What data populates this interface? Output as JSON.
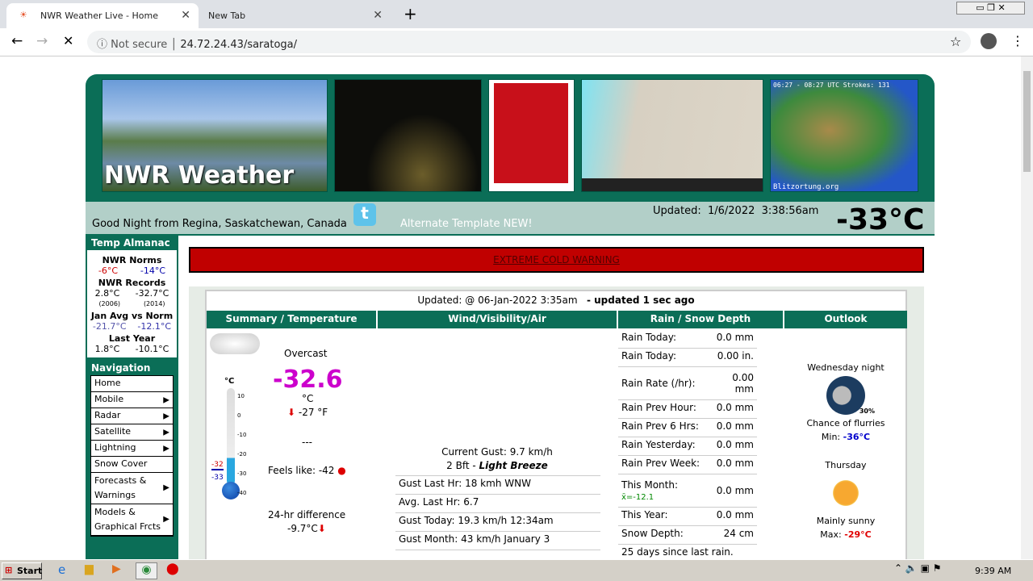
{
  "browser": {
    "tabs": [
      {
        "title": "NWR Weather Live - Home"
      },
      {
        "title": "New Tab"
      }
    ],
    "security": "Not secure",
    "url": "24.72.24.43/saratoga/"
  },
  "header": {
    "logo_text": "NWR Weather",
    "greeting": "Good Night from Regina, Saskatchewan, Canada",
    "alt_template": "Alternate Template NEW!",
    "updated_label": "Updated:",
    "updated_value": "1/6/2022  3:38:56am",
    "big_temp": "-33°C",
    "lightning_caption": "06:27 - 08:27 UTC   Strokes: 131",
    "lightning_credit": "Blitzortung.org"
  },
  "almanac": {
    "title": "Temp Almanac",
    "sections": [
      {
        "label": "NWR Norms",
        "a": "-6°C",
        "b": "-14°C"
      },
      {
        "label": "NWR Records",
        "a": "2.8°C",
        "b": "-32.7°C",
        "a_year": "(2006)",
        "b_year": "(2014)"
      },
      {
        "label": "Jan Avg vs Norm",
        "a": "-21.7°C",
        "b": "-12.1°C"
      },
      {
        "label": "Last Year",
        "a": "1.8°C",
        "b": "-10.1°C"
      }
    ]
  },
  "nav": {
    "title": "Navigation",
    "items": [
      "Home",
      "Mobile",
      "Radar",
      "Satellite",
      "Lightning",
      "Snow Cover",
      "Forecasts & Warnings",
      "Models & Graphical Frcts"
    ]
  },
  "warning": "EXTREME COLD WARNING",
  "conditions": {
    "updated": "Updated: @ 06-Jan-2022 3:35am",
    "updated_ago": "- updated 1 sec ago",
    "headers": [
      "Summary / Temperature",
      "Wind/Visibility/Air",
      "Rain / Snow Depth",
      "Outlook"
    ],
    "summary": {
      "condition": "Overcast",
      "temp": "-32.6",
      "unit": "°C",
      "temp_f": "-27 °F",
      "dashes": "---",
      "feels_like": "Feels like: -42",
      "diff_label": "24-hr difference",
      "diff_value": "-9.7°C",
      "thermo_unit": "°C",
      "thermo_ticks": [
        "10",
        "0",
        "-10",
        "-20",
        "-30",
        "-40"
      ],
      "thermo_hi": "-32",
      "thermo_lo": "-33"
    },
    "wind": {
      "current_gust": "Current Gust: 9.7 km/h",
      "bft": "2 Bft - ",
      "bft_desc": "Light Breeze",
      "rows": [
        "Gust Last Hr: 18 kmh WNW",
        "Avg. Last Hr: 6.7",
        "Gust Today: 19.3 km/h 12:34am",
        "Gust Month: 43 km/h January 3"
      ]
    },
    "rain": [
      [
        "Rain Today:",
        "0.0 mm"
      ],
      [
        "Rain Today:",
        "0.00  in."
      ],
      [
        "Rain Rate (/hr):",
        "0.00 mm"
      ],
      [
        "Rain Prev Hour:",
        "0.0 mm"
      ],
      [
        "Rain Prev 6 Hrs:",
        "0.0 mm"
      ],
      [
        "Rain Yesterday:",
        "0.0 mm"
      ],
      [
        "Rain Prev Week:",
        "0.0 mm"
      ],
      [
        "This Month:",
        "0.0 mm"
      ],
      [
        "This Year:",
        "0.0 mm"
      ],
      [
        "Snow Depth:",
        "24 cm"
      ]
    ],
    "rain_month_avg": "x̄=-12.1",
    "rain_since": "25 days since last rain.",
    "outlook": [
      {
        "period": "Wednesday night",
        "pop": "30%",
        "text": "Chance of flurries",
        "label": "Min:",
        "temp": "-36°C",
        "color": "#0000cc"
      },
      {
        "period": "Thursday",
        "text": "Mainly sunny",
        "label": "Max:",
        "temp": "-29°C",
        "color": "#e00000"
      }
    ]
  },
  "taskbar": {
    "start": "Start",
    "time": "9:39 AM"
  },
  "colors": {
    "green": "#0b6e57",
    "bar": "#b2cfc8",
    "warning": "#c00000",
    "temp": "#cc00cc"
  }
}
